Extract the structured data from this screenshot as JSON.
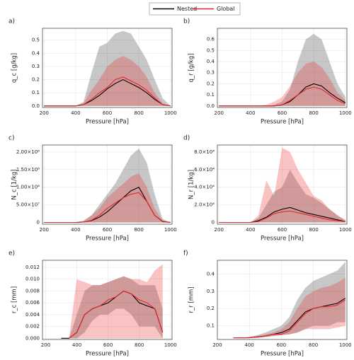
{
  "legend": [
    {
      "name": "Nested",
      "color": "#000000"
    },
    {
      "name": "Global",
      "color": "#e8262a"
    }
  ],
  "chart_data": [
    {
      "type": "line",
      "label": "a)",
      "xlabel": "Pressure [hPa]",
      "ylabel": "q_c [g/kg]",
      "x": [
        200,
        250,
        300,
        350,
        400,
        450,
        500,
        550,
        600,
        650,
        700,
        750,
        800,
        850,
        900,
        950,
        1000
      ],
      "xlim": [
        190,
        1010
      ],
      "xticks": [
        200,
        400,
        600,
        800,
        1000
      ],
      "ylim": [
        -0.012,
        0.59
      ],
      "yticks": [
        {
          "value": 0,
          "label": "0.0"
        },
        0.1,
        0.2,
        0.3,
        0.4,
        0.5
      ],
      "grid": true,
      "series": [
        {
          "color": "#000000",
          "values": [
            0,
            0,
            0,
            0,
            0,
            0.01,
            0.04,
            0.08,
            0.13,
            0.17,
            0.2,
            0.17,
            0.14,
            0.1,
            0.05,
            0.01,
            0
          ],
          "lower": [
            0,
            0,
            0,
            0,
            0,
            0,
            0,
            0,
            0,
            0,
            0,
            0,
            0,
            0,
            0,
            0,
            0
          ],
          "upper": [
            0,
            0,
            0,
            0,
            0,
            0.03,
            0.25,
            0.45,
            0.48,
            0.55,
            0.57,
            0.55,
            0.45,
            0.35,
            0.2,
            0.06,
            0
          ]
        },
        {
          "color": "#e8262a",
          "values": [
            0,
            0,
            0,
            0,
            0,
            0.01,
            0.05,
            0.1,
            0.14,
            0.2,
            0.22,
            0.19,
            0.16,
            0.12,
            0.06,
            0.01,
            0
          ],
          "lower": [
            0,
            0,
            0,
            0,
            0,
            0,
            0,
            0,
            0,
            0,
            0,
            0,
            0,
            0,
            0,
            0,
            0
          ],
          "upper": [
            0,
            0,
            0,
            0,
            0,
            0.02,
            0.12,
            0.2,
            0.3,
            0.35,
            0.38,
            0.35,
            0.3,
            0.22,
            0.1,
            0.02,
            0
          ]
        }
      ]
    },
    {
      "type": "line",
      "label": "b)",
      "xlabel": "Pressure [hPa]",
      "ylabel": "q_r [g/kg]",
      "x": [
        200,
        250,
        300,
        350,
        400,
        450,
        500,
        550,
        600,
        650,
        700,
        750,
        800,
        850,
        900,
        950,
        1000
      ],
      "xlim": [
        190,
        1010
      ],
      "xticks": [
        200,
        400,
        600,
        800,
        1000
      ],
      "ylim": [
        -0.014,
        0.7
      ],
      "yticks": [
        {
          "value": 0,
          "label": "0.0"
        },
        0.1,
        0.2,
        0.3,
        0.4,
        0.5,
        0.6
      ],
      "grid": true,
      "series": [
        {
          "color": "#000000",
          "values": [
            0,
            0,
            0,
            0,
            0,
            0,
            0,
            0,
            0.01,
            0.04,
            0.1,
            0.17,
            0.2,
            0.18,
            0.12,
            0.07,
            0.03
          ],
          "lower": [
            0,
            0,
            0,
            0,
            0,
            0,
            0,
            0,
            0,
            0,
            0,
            0,
            0,
            0,
            0,
            0,
            0
          ],
          "upper": [
            0,
            0,
            0,
            0,
            0,
            0,
            0,
            0.01,
            0.04,
            0.15,
            0.4,
            0.6,
            0.65,
            0.6,
            0.4,
            0.2,
            0.08
          ]
        },
        {
          "color": "#e8262a",
          "values": [
            0,
            0,
            0,
            0,
            0,
            0,
            0,
            0,
            0.01,
            0.05,
            0.1,
            0.15,
            0.17,
            0.15,
            0.1,
            0.05,
            0.02
          ],
          "lower": [
            0,
            0,
            0,
            0,
            0,
            0,
            0,
            0,
            0,
            0,
            0,
            0,
            0,
            0,
            0,
            0,
            0
          ],
          "upper": [
            0,
            0,
            0,
            0,
            0,
            0,
            0.01,
            0.04,
            0.08,
            0.18,
            0.3,
            0.38,
            0.4,
            0.35,
            0.25,
            0.12,
            0.05
          ]
        }
      ]
    },
    {
      "type": "line",
      "label": "c)",
      "xlabel": "Pressure [hPa]",
      "ylabel": "N_c [1/kg]",
      "x": [
        200,
        250,
        300,
        350,
        400,
        450,
        500,
        550,
        600,
        650,
        700,
        750,
        800,
        850,
        900,
        950,
        1000
      ],
      "xlim": [
        190,
        1010
      ],
      "xticks": [
        200,
        400,
        600,
        800,
        1000
      ],
      "ylim": [
        -5000000,
        220000000
      ],
      "yticks": [
        0,
        {
          "value": 50000000,
          "label": "5.00×10⁷"
        },
        {
          "value": 100000000,
          "label": "1.00×10⁸"
        },
        {
          "value": 150000000,
          "label": "1.50×10⁸"
        },
        {
          "value": 200000000,
          "label": "2.00×10⁸"
        }
      ],
      "grid": true,
      "series": [
        {
          "color": "#000000",
          "values": [
            0,
            0,
            0,
            0,
            0,
            1000000,
            5000000,
            15000000,
            30000000,
            50000000,
            70000000,
            90000000,
            100000000,
            60000000,
            20000000,
            3000000,
            0
          ],
          "lower": [
            0,
            0,
            0,
            0,
            0,
            0,
            0,
            0,
            0,
            0,
            0,
            0,
            0,
            0,
            0,
            0,
            0
          ],
          "upper": [
            0,
            0,
            0,
            0,
            0,
            5000000,
            20000000,
            50000000,
            80000000,
            110000000,
            150000000,
            190000000,
            210000000,
            170000000,
            80000000,
            10000000,
            0
          ]
        },
        {
          "color": "#e8262a",
          "values": [
            0,
            0,
            0,
            0,
            0,
            1000000,
            6000000,
            20000000,
            40000000,
            55000000,
            70000000,
            80000000,
            85000000,
            60000000,
            20000000,
            2000000,
            0
          ],
          "lower": [
            0,
            0,
            0,
            0,
            0,
            0,
            0,
            0,
            0,
            0,
            0,
            0,
            0,
            0,
            0,
            0,
            0
          ],
          "upper": [
            0,
            0,
            0,
            0,
            0,
            4000000,
            20000000,
            40000000,
            70000000,
            90000000,
            110000000,
            130000000,
            140000000,
            100000000,
            40000000,
            5000000,
            0
          ]
        }
      ]
    },
    {
      "type": "line",
      "label": "d)",
      "xlabel": "Pressure [hPa]",
      "ylabel": "N_r [1/kg]",
      "x": [
        200,
        250,
        300,
        350,
        400,
        450,
        500,
        550,
        600,
        650,
        700,
        750,
        800,
        850,
        900,
        950,
        1000
      ],
      "xlim": [
        190,
        1010
      ],
      "xticks": [
        200,
        400,
        600,
        800,
        1000
      ],
      "ylim": [
        -2000,
        88000
      ],
      "yticks": [
        0,
        {
          "value": 20000,
          "label": "2.0×10⁴"
        },
        {
          "value": 40000,
          "label": "4.0×10⁴"
        },
        {
          "value": 60000,
          "label": "6.0×10⁴"
        },
        {
          "value": 80000,
          "label": "8.0×10⁴"
        }
      ],
      "grid": true,
      "series": [
        {
          "color": "#000000",
          "values": [
            0,
            0,
            0,
            0,
            0,
            2000,
            6000,
            12000,
            15000,
            17000,
            14000,
            11000,
            9000,
            7000,
            5000,
            3000,
            1000
          ],
          "lower": [
            0,
            0,
            0,
            0,
            0,
            0,
            0,
            0,
            0,
            0,
            0,
            0,
            0,
            0,
            0,
            0,
            0
          ],
          "upper": [
            0,
            0,
            0,
            0,
            0,
            5000,
            20000,
            35000,
            40000,
            60000,
            45000,
            32000,
            28000,
            22000,
            15000,
            8000,
            3000
          ]
        },
        {
          "color": "#e8262a",
          "values": [
            0,
            0,
            0,
            0,
            0,
            1000,
            5000,
            10000,
            12000,
            13000,
            11000,
            9000,
            7000,
            5000,
            3000,
            2000,
            1000
          ],
          "lower": [
            0,
            0,
            0,
            0,
            0,
            0,
            0,
            0,
            0,
            0,
            0,
            0,
            0,
            0,
            0,
            0,
            0
          ],
          "upper": [
            0,
            0,
            0,
            0,
            0,
            8000,
            48000,
            30000,
            85000,
            80000,
            60000,
            45000,
            30000,
            25000,
            15000,
            8000,
            2000
          ]
        }
      ]
    },
    {
      "type": "line",
      "label": "e)",
      "xlabel": "Pressure [hPa]",
      "ylabel": "r_c [mm]",
      "x": [
        200,
        250,
        300,
        350,
        400,
        450,
        500,
        550,
        600,
        650,
        700,
        750,
        800,
        850,
        900,
        950,
        1000
      ],
      "xlim": [
        180,
        1010
      ],
      "xticks": [
        200,
        400,
        600,
        800,
        1000
      ],
      "ylim": [
        -0.0002,
        0.0132
      ],
      "yticks": [
        {
          "value": 0,
          "label": "0.000"
        },
        0.002,
        0.004,
        0.006,
        0.008,
        {
          "value": 0.01,
          "label": "0.010"
        },
        0.012
      ],
      "grid": true,
      "series": [
        {
          "color": "#000000",
          "values": [
            null,
            null,
            0,
            0,
            0.001,
            0.004,
            0.005,
            0.0055,
            0.006,
            0.007,
            0.008,
            0.0075,
            0.006,
            0.0055,
            0.005,
            0.001,
            null
          ],
          "lower": [
            null,
            null,
            0,
            0,
            0,
            0.001,
            0.003,
            0.004,
            0.004,
            0.005,
            0.005,
            0.004,
            0.002,
            0.002,
            0.002,
            0,
            null
          ],
          "upper": [
            null,
            null,
            0,
            0,
            0.004,
            0.008,
            0.009,
            0.009,
            0.0095,
            0.01,
            0.0105,
            0.01,
            0.009,
            0.009,
            0.009,
            0.005,
            null
          ]
        },
        {
          "color": "#e8262a",
          "values": [
            null,
            null,
            null,
            0,
            0.001,
            0.004,
            0.005,
            0.0055,
            0.0065,
            0.007,
            0.008,
            0.0075,
            0.0065,
            0.006,
            0.005,
            0.001,
            null
          ],
          "lower": [
            null,
            null,
            null,
            0,
            0,
            0,
            0,
            0,
            0,
            0,
            0,
            0,
            0,
            0,
            0,
            0,
            null
          ],
          "upper": [
            null,
            null,
            null,
            0,
            0.01,
            0.0095,
            0.009,
            0.009,
            0.0095,
            0.01,
            0.0105,
            0.01,
            0.01,
            0.0095,
            0.0115,
            0.0125,
            null
          ]
        }
      ]
    },
    {
      "type": "line",
      "label": "f)",
      "xlabel": "Pressure [hPa]",
      "ylabel": "r_r [mm]",
      "x": [
        200,
        250,
        300,
        350,
        400,
        450,
        500,
        550,
        600,
        650,
        700,
        750,
        800,
        850,
        900,
        950,
        1000
      ],
      "xlim": [
        200,
        1010
      ],
      "xticks": [
        200,
        400,
        600,
        800,
        1000
      ],
      "ylim": [
        0.02,
        0.48
      ],
      "yticks": [
        0.1,
        0.2,
        0.3,
        0.4
      ],
      "grid": true,
      "series": [
        {
          "color": "#000000",
          "values": [
            null,
            null,
            0.03,
            0.03,
            0.03,
            0.035,
            0.04,
            0.05,
            0.06,
            0.08,
            0.13,
            0.18,
            0.2,
            0.21,
            0.22,
            0.23,
            0.26
          ],
          "lower": [
            null,
            null,
            0.03,
            0.03,
            0.03,
            0.03,
            0.035,
            0.04,
            0.045,
            0.05,
            0.06,
            0.08,
            0.1,
            0.1,
            0.1,
            0.12,
            0.12
          ],
          "upper": [
            null,
            null,
            0.03,
            0.03,
            0.035,
            0.045,
            0.06,
            0.08,
            0.1,
            0.15,
            0.25,
            0.32,
            0.36,
            0.38,
            0.4,
            0.42,
            0.47
          ]
        },
        {
          "color": "#e8262a",
          "values": [
            null,
            null,
            0.03,
            0.03,
            0.03,
            0.035,
            0.04,
            0.05,
            0.05,
            0.07,
            0.12,
            0.17,
            0.2,
            0.21,
            0.21,
            0.22,
            0.25
          ],
          "lower": [
            null,
            null,
            0.03,
            0.03,
            0.03,
            0.03,
            0.035,
            0.04,
            0.045,
            0.05,
            0.06,
            0.08,
            0.08,
            0.08,
            0.08,
            0.09,
            0.1
          ],
          "upper": [
            null,
            null,
            0.03,
            0.03,
            0.035,
            0.04,
            0.05,
            0.06,
            0.08,
            0.12,
            0.2,
            0.27,
            0.3,
            0.32,
            0.33,
            0.35,
            0.38
          ]
        }
      ]
    }
  ]
}
